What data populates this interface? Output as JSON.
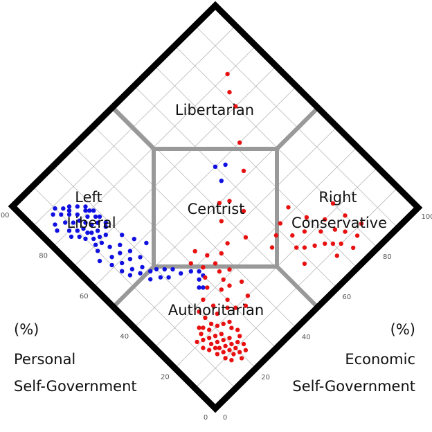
{
  "chart_data": {
    "type": "scatter",
    "layout": "diamond (Nolan chart)",
    "axes": [
      {
        "name": "personal",
        "label_lines": [
          "(%)",
          "Personal",
          "Self-Government"
        ],
        "range": [
          0,
          100
        ],
        "ticks": [
          0,
          20,
          40,
          60,
          80,
          100
        ],
        "edge": "lower-left"
      },
      {
        "name": "economic",
        "label_lines": [
          "(%)",
          "Economic",
          "Self-Government"
        ],
        "range": [
          0,
          100
        ],
        "ticks": [
          0,
          20,
          40,
          60,
          80,
          100
        ],
        "edge": "lower-right"
      }
    ],
    "grid": true,
    "grid_step": 10,
    "regions": [
      {
        "name": "libertarian",
        "lines": [
          "Libertarian"
        ]
      },
      {
        "name": "left-liberal",
        "lines": [
          "Left",
          "Liberal"
        ]
      },
      {
        "name": "centrist",
        "lines": [
          "Centrist"
        ]
      },
      {
        "name": "right-conservative",
        "lines": [
          "Right",
          "Conservative"
        ]
      },
      {
        "name": "authoritarian",
        "lines": [
          "Authoritarian"
        ]
      }
    ],
    "series": [
      {
        "color": "#1010e0",
        "points": [
          [
            88,
            8
          ],
          [
            86,
            10
          ],
          [
            85,
            6
          ],
          [
            84,
            12
          ],
          [
            83,
            9
          ],
          [
            82,
            14
          ],
          [
            81,
            11
          ],
          [
            80,
            8
          ],
          [
            80,
            13
          ],
          [
            79,
            16
          ],
          [
            78,
            10
          ],
          [
            78,
            14
          ],
          [
            77,
            12
          ],
          [
            76,
            15
          ],
          [
            76,
            9
          ],
          [
            75,
            17
          ],
          [
            74,
            13
          ],
          [
            74,
            10
          ],
          [
            73,
            15
          ],
          [
            72,
            12
          ],
          [
            72,
            18
          ],
          [
            71,
            14
          ],
          [
            70,
            16
          ],
          [
            70,
            11
          ],
          [
            69,
            13
          ],
          [
            86,
            14
          ],
          [
            84,
            16
          ],
          [
            82,
            18
          ],
          [
            87,
            12
          ],
          [
            83,
            5
          ],
          [
            81,
            17
          ],
          [
            79,
            19
          ],
          [
            77,
            18
          ],
          [
            75,
            12
          ],
          [
            73,
            19
          ],
          [
            89,
            10
          ],
          [
            85,
            13
          ],
          [
            80,
            18
          ],
          [
            78,
            7
          ],
          [
            76,
            19
          ],
          [
            68,
            10
          ],
          [
            66,
            14
          ],
          [
            65,
            8
          ],
          [
            64,
            17
          ],
          [
            63,
            12
          ],
          [
            62,
            15
          ],
          [
            61,
            10
          ],
          [
            60,
            18
          ],
          [
            59,
            13
          ],
          [
            58,
            16
          ],
          [
            57,
            11
          ],
          [
            56,
            19
          ],
          [
            55,
            14
          ],
          [
            54,
            12
          ],
          [
            53,
            17
          ],
          [
            52,
            15
          ],
          [
            50,
            18
          ],
          [
            49,
            20
          ],
          [
            48,
            16
          ],
          [
            47,
            22
          ],
          [
            46,
            19
          ],
          [
            45,
            24
          ],
          [
            44,
            21
          ],
          [
            42,
            25
          ],
          [
            40,
            28
          ],
          [
            38,
            30
          ],
          [
            36,
            28
          ],
          [
            34,
            26
          ],
          [
            62,
            22
          ],
          [
            58,
            24
          ],
          [
            66,
            20
          ],
          [
            60,
            60
          ],
          [
            55,
            58
          ],
          [
            58,
            63
          ],
          [
            36,
            30
          ],
          [
            33,
            27
          ]
        ]
      },
      {
        "color": "#e81010",
        "points": [
          [
            20,
            14
          ],
          [
            19,
            16
          ],
          [
            18,
            12
          ],
          [
            18,
            18
          ],
          [
            17,
            15
          ],
          [
            17,
            20
          ],
          [
            16,
            13
          ],
          [
            16,
            17
          ],
          [
            15,
            19
          ],
          [
            15,
            15
          ],
          [
            14,
            21
          ],
          [
            14,
            16
          ],
          [
            13,
            18
          ],
          [
            13,
            14
          ],
          [
            12,
            20
          ],
          [
            12,
            16
          ],
          [
            11,
            18
          ],
          [
            11,
            22
          ],
          [
            10,
            15
          ],
          [
            10,
            20
          ],
          [
            9,
            18
          ],
          [
            9,
            23
          ],
          [
            8,
            20
          ],
          [
            8,
            16
          ],
          [
            7,
            22
          ],
          [
            21,
            18
          ],
          [
            22,
            15
          ],
          [
            20,
            21
          ],
          [
            19,
            23
          ],
          [
            18,
            25
          ],
          [
            16,
            24
          ],
          [
            14,
            25
          ],
          [
            12,
            24
          ],
          [
            22,
            20
          ],
          [
            23,
            17
          ],
          [
            21,
            12
          ],
          [
            24,
            16
          ],
          [
            25,
            20
          ],
          [
            23,
            24
          ],
          [
            6,
            19
          ],
          [
            28,
            20
          ],
          [
            26,
            25
          ],
          [
            30,
            24
          ],
          [
            32,
            28
          ],
          [
            28,
            31
          ],
          [
            24,
            30
          ],
          [
            35,
            30
          ],
          [
            33,
            35
          ],
          [
            30,
            34
          ],
          [
            27,
            34
          ],
          [
            22,
            28
          ],
          [
            20,
            30
          ],
          [
            18,
            33
          ],
          [
            36,
            36
          ],
          [
            38,
            32
          ],
          [
            40,
            36
          ],
          [
            37,
            40
          ],
          [
            31,
            38
          ],
          [
            25,
            38
          ],
          [
            20,
            36
          ],
          [
            42,
            30
          ],
          [
            44,
            34
          ],
          [
            20,
            60
          ],
          [
            18,
            62
          ],
          [
            16,
            65
          ],
          [
            14,
            68
          ],
          [
            12,
            70
          ],
          [
            10,
            72
          ],
          [
            22,
            66
          ],
          [
            18,
            70
          ],
          [
            15,
            74
          ],
          [
            12,
            76
          ],
          [
            24,
            62
          ],
          [
            8,
            78
          ],
          [
            20,
            74
          ],
          [
            16,
            80
          ],
          [
            25,
            70
          ],
          [
            10,
            82
          ],
          [
            28,
            58
          ],
          [
            30,
            62
          ],
          [
            26,
            54
          ],
          [
            14,
            58
          ],
          [
            8,
            68
          ],
          [
            6,
            74
          ],
          [
            22,
            80
          ],
          [
            32,
            68
          ],
          [
            45,
            48
          ],
          [
            50,
            52
          ],
          [
            48,
            55
          ],
          [
            42,
            56
          ],
          [
            35,
            50
          ],
          [
            52,
            66
          ],
          [
            60,
            72
          ],
          [
            70,
            80
          ],
          [
            75,
            82
          ],
          [
            80,
            86
          ],
          [
            38,
            44
          ]
        ]
      }
    ]
  }
}
